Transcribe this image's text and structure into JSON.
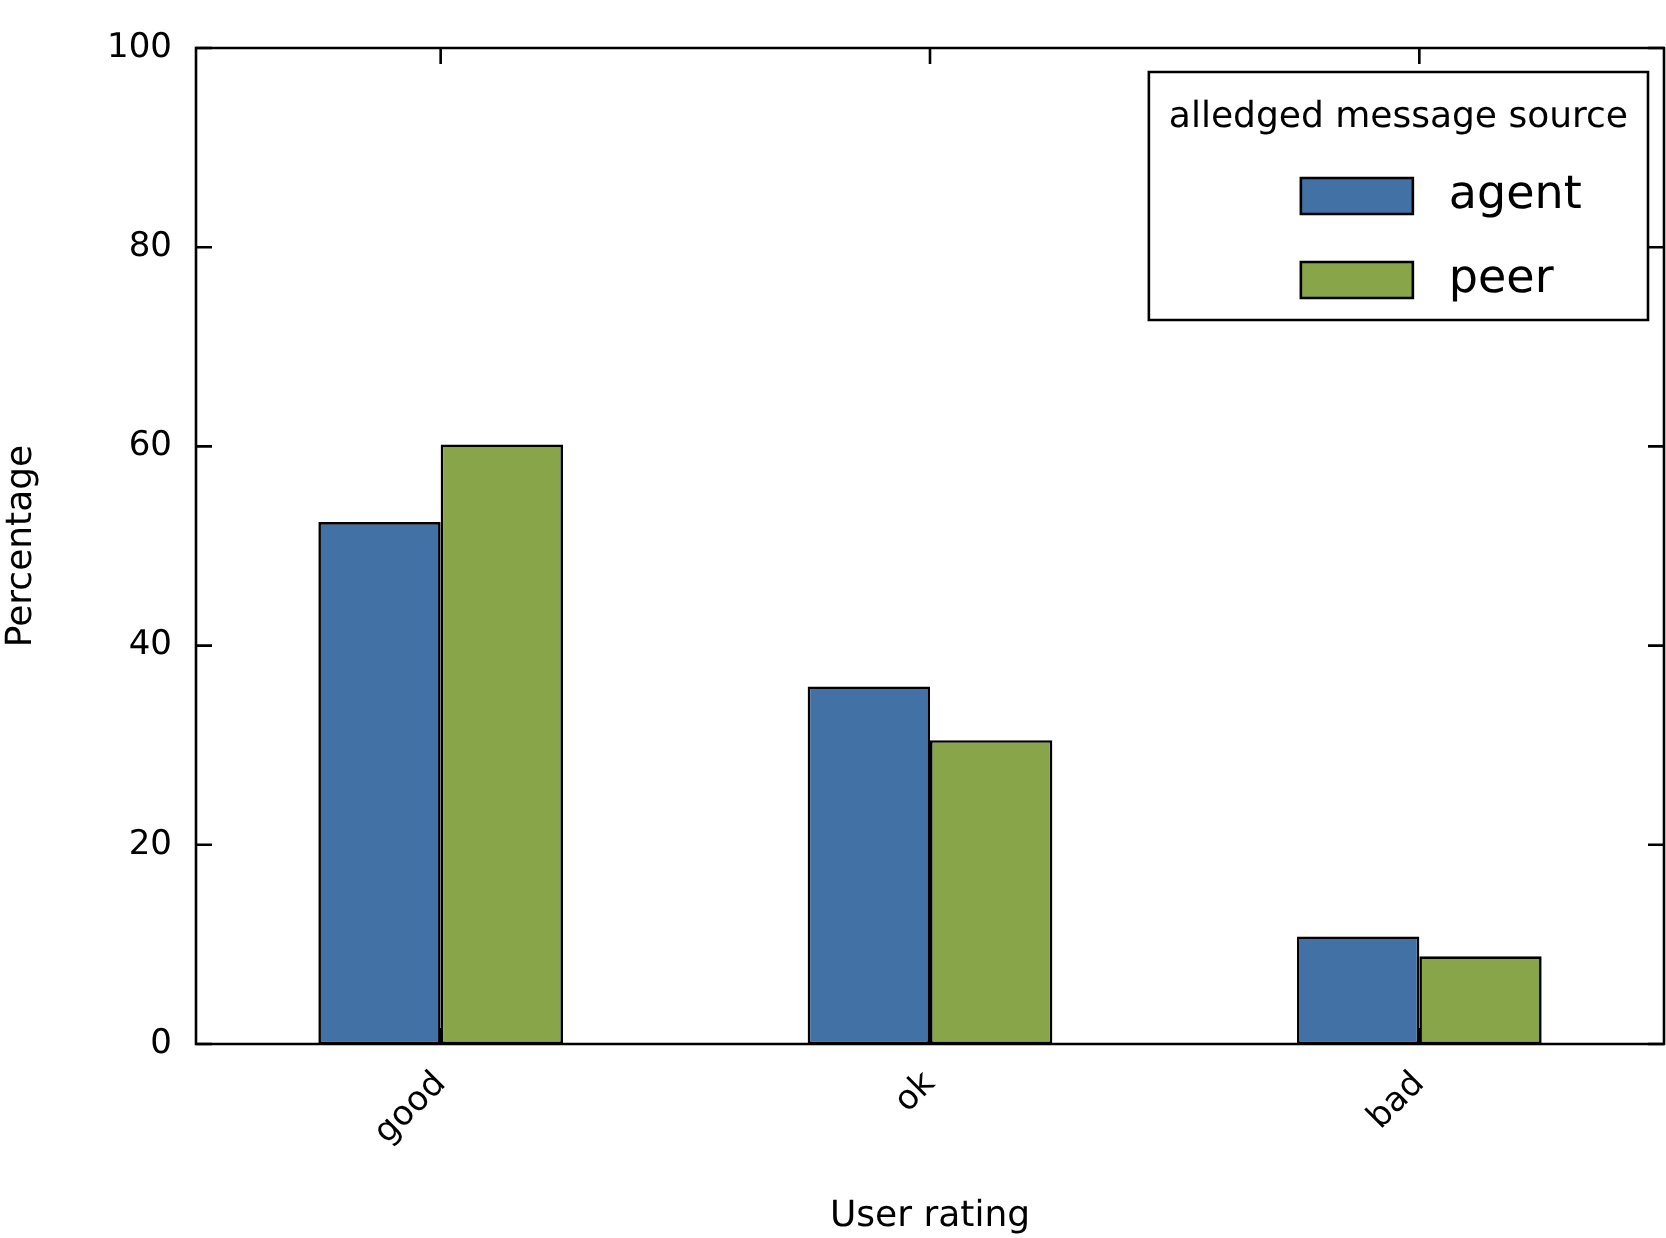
{
  "chart_data": {
    "type": "bar",
    "xlabel": "User rating",
    "ylabel": "Percentage",
    "legend_title": "alledged message source",
    "categories": [
      "good",
      "ok",
      "bad"
    ],
    "series": [
      {
        "name": "agent",
        "color": "#4171a5",
        "values": [
          52.4,
          35.9,
          10.8
        ]
      },
      {
        "name": "peer",
        "color": "#88a54a",
        "values": [
          60.2,
          30.5,
          8.8
        ]
      }
    ],
    "ylim": [
      0,
      100
    ],
    "yticks": [
      0,
      20,
      40,
      60,
      80,
      100
    ],
    "grid": false,
    "legend": "top right"
  }
}
